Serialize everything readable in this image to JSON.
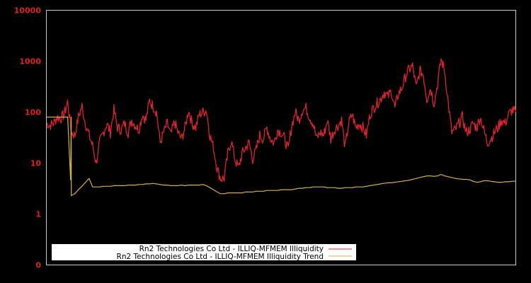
{
  "chart_data": {
    "type": "line",
    "title": "",
    "xlabel": "",
    "ylabel": "",
    "yscale": "log",
    "ylim": [
      0.1,
      10000
    ],
    "grid": false,
    "legend_position": "lower-left",
    "y_ticks": [
      {
        "label": "10000",
        "value": 10000
      },
      {
        "label": "1000",
        "value": 1000
      },
      {
        "label": "100",
        "value": 100
      },
      {
        "label": "10",
        "value": 10
      },
      {
        "label": "1",
        "value": 1
      },
      {
        "label": "0",
        "value": 0.1
      }
    ],
    "x_index": [
      0,
      5,
      10,
      15,
      20,
      25,
      30,
      35,
      40,
      45,
      50,
      55,
      60,
      65,
      70,
      75,
      80,
      85,
      90,
      95,
      100,
      105,
      110,
      115,
      120,
      125,
      130,
      135,
      140,
      145,
      150,
      155,
      160,
      165,
      170,
      175,
      180,
      185,
      190,
      195,
      200,
      205,
      210,
      215,
      220,
      225,
      230,
      235,
      240,
      245,
      250,
      255,
      260,
      265,
      270,
      275,
      280,
      285,
      290,
      295,
      300,
      305,
      310,
      315,
      320,
      325,
      330,
      335,
      340,
      345,
      350,
      355,
      360,
      365,
      370,
      375,
      380,
      385,
      390,
      395,
      400,
      405,
      410,
      415,
      420,
      425,
      430,
      435,
      440,
      445,
      450,
      455,
      460,
      465,
      470,
      475,
      480,
      485,
      490,
      495,
      500,
      505,
      510,
      515,
      520,
      525,
      530,
      535,
      540,
      545,
      550,
      555,
      560,
      565,
      570,
      575,
      580,
      585,
      590,
      595,
      600,
      605,
      610,
      615,
      620,
      625,
      630,
      635,
      640,
      645,
      650,
      655,
      660
    ],
    "series": [
      {
        "name": "Rn2 Technologies Co Ltd - ILLIQ-MFMEM Illiquidity",
        "color": "#dc2430",
        "values": [
          62,
          55,
          60,
          80,
          75,
          90,
          160,
          40,
          35,
          80,
          130,
          60,
          35,
          22,
          10,
          25,
          40,
          60,
          40,
          110,
          50,
          45,
          60,
          40,
          70,
          55,
          45,
          90,
          70,
          170,
          130,
          100,
          25,
          40,
          60,
          35,
          65,
          40,
          30,
          50,
          110,
          60,
          50,
          90,
          100,
          110,
          35,
          20,
          8,
          5,
          5,
          15,
          28,
          12,
          8,
          15,
          20,
          25,
          12,
          18,
          35,
          30,
          50,
          30,
          25,
          45,
          40,
          30,
          18,
          55,
          100,
          70,
          110,
          120,
          80,
          60,
          30,
          40,
          35,
          70,
          30,
          45,
          55,
          70,
          20,
          60,
          90,
          50,
          60,
          50,
          35,
          90,
          120,
          150,
          180,
          250,
          200,
          260,
          120,
          230,
          300,
          500,
          700,
          800,
          300,
          650,
          550,
          180,
          300,
          150,
          350,
          1100,
          650,
          150,
          40,
          45,
          60,
          80,
          40,
          45,
          60,
          50,
          80,
          45,
          25,
          30,
          40,
          50,
          70,
          60,
          90,
          110,
          100
        ],
        "unit": ""
      },
      {
        "name": "Rn2 Technologies Co Ltd - ILLIQ-MFMEM Illiquidity Trend",
        "color": "#d4b04a",
        "values": [
          80,
          80,
          80,
          80,
          80,
          80,
          80,
          2.3,
          2.5,
          3.0,
          3.5,
          4.2,
          5.0,
          3.4,
          3.4,
          3.4,
          3.5,
          3.5,
          3.5,
          3.6,
          3.6,
          3.6,
          3.6,
          3.7,
          3.7,
          3.7,
          3.8,
          3.8,
          3.9,
          3.9,
          4.0,
          3.9,
          3.8,
          3.7,
          3.7,
          3.6,
          3.6,
          3.6,
          3.7,
          3.6,
          3.7,
          3.7,
          3.7,
          3.7,
          3.8,
          3.6,
          3.3,
          3.0,
          2.7,
          2.5,
          2.5,
          2.6,
          2.6,
          2.6,
          2.6,
          2.6,
          2.7,
          2.7,
          2.7,
          2.8,
          2.8,
          2.8,
          2.9,
          2.9,
          2.9,
          2.9,
          3.0,
          3.0,
          3.0,
          3.0,
          3.1,
          3.2,
          3.2,
          3.3,
          3.3,
          3.4,
          3.4,
          3.4,
          3.4,
          3.3,
          3.3,
          3.3,
          3.2,
          3.2,
          3.3,
          3.3,
          3.3,
          3.4,
          3.4,
          3.4,
          3.5,
          3.6,
          3.7,
          3.8,
          3.9,
          4.0,
          4.1,
          4.1,
          4.2,
          4.3,
          4.4,
          4.5,
          4.6,
          4.8,
          5.0,
          5.2,
          5.4,
          5.6,
          5.6,
          5.5,
          5.6,
          6.0,
          5.6,
          5.4,
          5.2,
          5.0,
          4.9,
          4.8,
          4.8,
          4.7,
          4.4,
          4.2,
          4.3,
          4.5,
          4.5,
          4.4,
          4.3,
          4.2,
          4.2,
          4.3,
          4.3,
          4.4,
          4.4
        ],
        "unit": ""
      }
    ]
  },
  "legend": {
    "items": [
      {
        "label": "Rn2 Technologies Co Ltd - ILLIQ-MFMEM Illiquidity",
        "color": "#dc2430"
      },
      {
        "label": "Rn2 Technologies Co Ltd - ILLIQ-MFMEM Illiquidity Trend",
        "color": "#d4b04a"
      }
    ]
  },
  "style": {
    "background": "#000000",
    "axis_color": "#c8c8c8",
    "tick_label_color": "#dd2222"
  }
}
